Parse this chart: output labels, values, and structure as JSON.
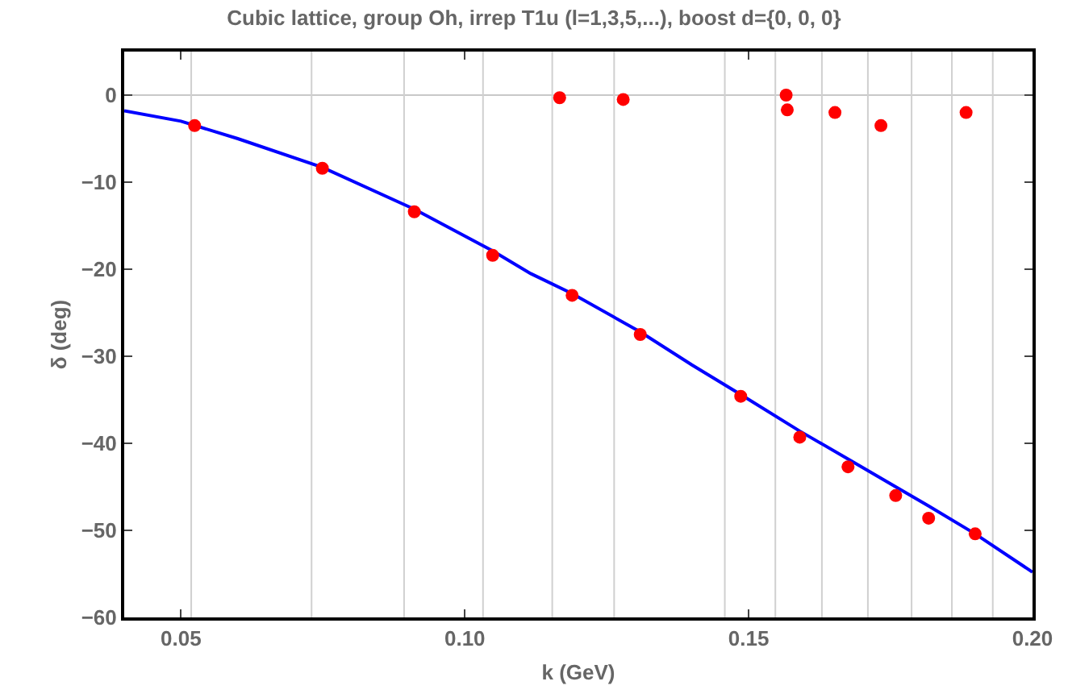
{
  "chart_data": {
    "type": "scatter",
    "title": "Cubic lattice, group Oh, irrep T1u (l=1,3,5,...), boost d={0, 0, 0}",
    "xlabel": "k (GeV)",
    "ylabel": "δ (deg)",
    "xlim": [
      0.04,
      0.2
    ],
    "xticks": [
      {
        "value": 0.05,
        "label": "0.05"
      },
      {
        "value": 0.1,
        "label": "0.10"
      },
      {
        "value": 0.15,
        "label": "0.15"
      },
      {
        "value": 0.2,
        "label": "0.20"
      }
    ],
    "ylim": [
      -60,
      5
    ],
    "yticks": [
      -60,
      -50,
      -40,
      -30,
      -20,
      -10,
      0
    ],
    "marker": "circle",
    "series": [
      {
        "type": "line",
        "marker": "none",
        "color": "#0000ff",
        "x": [
          0.04,
          0.05,
          0.06,
          0.0749,
          0.0911,
          0.1049,
          0.1116,
          0.1189,
          0.1309,
          0.14,
          0.1486,
          0.159,
          0.1675,
          0.1759,
          0.1817,
          0.1899,
          0.2
        ],
        "values": [
          -1.8,
          -3.0,
          -5.0,
          -8.3,
          -13.1,
          -17.9,
          -20.5,
          -22.8,
          -27.2,
          -31.0,
          -34.4,
          -38.6,
          -41.8,
          -45.0,
          -47.2,
          -50.4,
          -54.8
        ]
      },
      {
        "color": "#ff0000",
        "x": [
          0.0524,
          0.0749,
          0.0911,
          0.1049,
          0.1167,
          0.1189,
          0.1279,
          0.1309,
          0.1486,
          0.1566,
          0.1568,
          0.159,
          0.1652,
          0.1675,
          0.1733,
          0.1759,
          0.1817,
          0.1883,
          0.1899
        ],
        "values": [
          -3.5,
          -8.4,
          -13.4,
          -18.4,
          -0.3,
          -23.0,
          -0.5,
          -27.5,
          -34.6,
          0,
          -1.7,
          -39.3,
          -2.0,
          -42.7,
          -3.5,
          -46.0,
          -48.6,
          -2.0,
          -50.4
        ]
      }
    ],
    "ref_lines": [
      {
        "axis": "y",
        "value": 0,
        "color": "#c8c8c8"
      },
      {
        "axis": "x",
        "value": 0.0518,
        "color": "#d0d0d0"
      },
      {
        "axis": "x",
        "value": 0.073,
        "color": "#d0d0d0"
      },
      {
        "axis": "x",
        "value": 0.0893,
        "color": "#d0d0d0"
      },
      {
        "axis": "x",
        "value": 0.1032,
        "color": "#d0d0d0"
      },
      {
        "axis": "x",
        "value": 0.1154,
        "color": "#d0d0d0"
      },
      {
        "axis": "x",
        "value": 0.1263,
        "color": "#d0d0d0"
      },
      {
        "axis": "x",
        "value": 0.1458,
        "color": "#d0d0d0"
      },
      {
        "axis": "x",
        "value": 0.1547,
        "color": "#d0d0d0"
      },
      {
        "axis": "x",
        "value": 0.1629,
        "color": "#d0d0d0"
      },
      {
        "axis": "x",
        "value": 0.171,
        "color": "#d0d0d0"
      },
      {
        "axis": "x",
        "value": 0.1787,
        "color": "#d0d0d0"
      },
      {
        "axis": "x",
        "value": 0.1858,
        "color": "#d0d0d0"
      },
      {
        "axis": "x",
        "value": 0.193,
        "color": "#d0d0d0"
      }
    ]
  }
}
